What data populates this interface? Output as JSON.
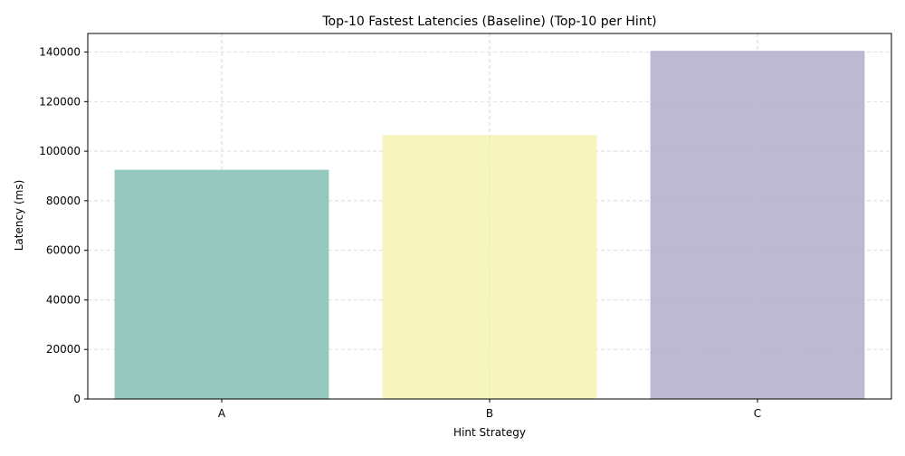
{
  "chart_data": {
    "type": "bar",
    "title": "Top-10 Fastest Latencies (Baseline) (Top-10 per Hint)",
    "xlabel": "Hint Strategy",
    "ylabel": "Latency (ms)",
    "categories": [
      "A",
      "B",
      "C"
    ],
    "values": [
      92500,
      106500,
      140500
    ],
    "colors": [
      "#8dc3b8",
      "#f5f4b8",
      "#b8b3cf"
    ],
    "ylim": [
      0,
      147500
    ],
    "yticks": [
      0,
      20000,
      40000,
      60000,
      80000,
      100000,
      120000,
      140000
    ],
    "ytick_labels": [
      "0",
      "20000",
      "40000",
      "60000",
      "80000",
      "100000",
      "120000",
      "140000"
    ],
    "grid": true,
    "legend": "none"
  }
}
